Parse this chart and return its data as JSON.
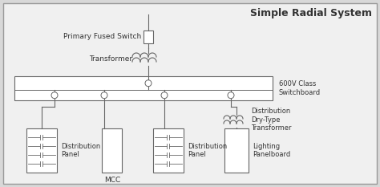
{
  "title": "Simple Radial System",
  "bg_color": "#d8d8d8",
  "inner_bg": "#f0f0f0",
  "line_color": "#666666",
  "text_color": "#333333",
  "title_fontsize": 9,
  "label_fontsize": 6.5,
  "small_fontsize": 6.0,
  "labels": {
    "primary_fused_switch": "Primary Fused Switch",
    "transformer": "Transformer",
    "switchboard": "600V Class\nSwitchboard",
    "dist_panel1": "Distribution\nPanel",
    "mcc": "MCC",
    "dist_panel2": "Distribution\nPanel",
    "dist_transformer": "Distribution\nDry-Type\nTransformer",
    "lighting": "Lighting\nPanelboard"
  }
}
